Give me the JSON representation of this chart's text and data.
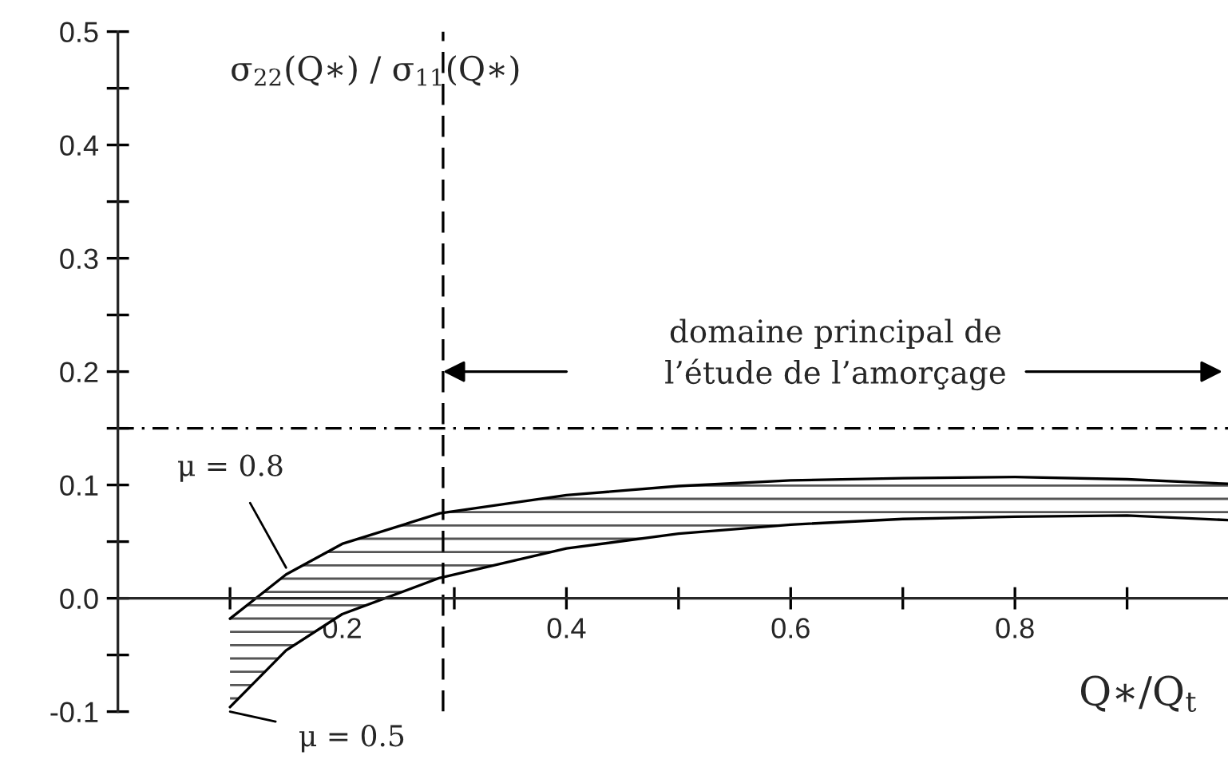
{
  "chart_data": {
    "type": "line",
    "xlabel": "Q∗/Q$_{t}$",
    "ylabel": "σ$_{22}$(Q∗) / σ$_{11}$(Q∗)",
    "x": [
      0.1,
      0.15,
      0.2,
      0.287,
      0.4,
      0.5,
      0.6,
      0.7,
      0.8,
      0.9,
      0.99
    ],
    "series": [
      {
        "name": "μ = 0.8",
        "color": "#000000",
        "values": [
          -0.018,
          0.021,
          0.048,
          0.075,
          0.091,
          0.099,
          0.104,
          0.106,
          0.107,
          0.105,
          0.101
        ],
        "upper": [
          -0.018,
          0.021,
          0.048,
          0.075,
          0.091,
          0.099,
          0.104,
          0.106,
          0.107,
          0.105,
          0.101
        ],
        "lower": [
          -0.096,
          -0.046,
          -0.014,
          0.018,
          0.044,
          0.057,
          0.065,
          0.07,
          0.072,
          0.073,
          0.069
        ]
      },
      {
        "name": "μ = 0.5",
        "color": "#000000",
        "values": [
          -0.096,
          -0.046,
          -0.014,
          0.018,
          0.044,
          0.057,
          0.065,
          0.07,
          0.072,
          0.073,
          0.069
        ]
      }
    ],
    "xlim": [
      0,
      0.99
    ],
    "ylim": [
      -0.1,
      0.5
    ],
    "xticks": [
      {
        "value": 0.1,
        "label": null
      },
      0.2,
      {
        "value": 0.3,
        "label": null
      },
      0.4,
      {
        "value": 0.5,
        "label": null
      },
      0.6,
      {
        "value": 0.7,
        "label": null
      },
      0.8,
      {
        "value": 0.9,
        "label": null
      }
    ],
    "yticks": [
      -0.1,
      {
        "value": -0.05,
        "label": null
      },
      {
        "value": 0,
        "label": "0.0"
      },
      {
        "value": 0.05,
        "label": null
      },
      0.1,
      {
        "value": 0.15,
        "label": null
      },
      0.2,
      {
        "value": 0.25,
        "label": null
      },
      0.3,
      {
        "value": 0.35,
        "label": null
      },
      0.4,
      {
        "value": 0.45,
        "label": null
      },
      0.5
    ],
    "ref_lines": [
      {
        "axis": "y",
        "value": 0.15,
        "line_style": "dashdot",
        "color": "#000000"
      },
      {
        "axis": "x",
        "value": 0.29,
        "line_style": "dashed",
        "color": "#000000"
      }
    ],
    "annotations": [
      "domaine principal de\nl’étude de l’amorçage"
    ],
    "grid": false,
    "marker": "none",
    "line_style": "solid"
  }
}
